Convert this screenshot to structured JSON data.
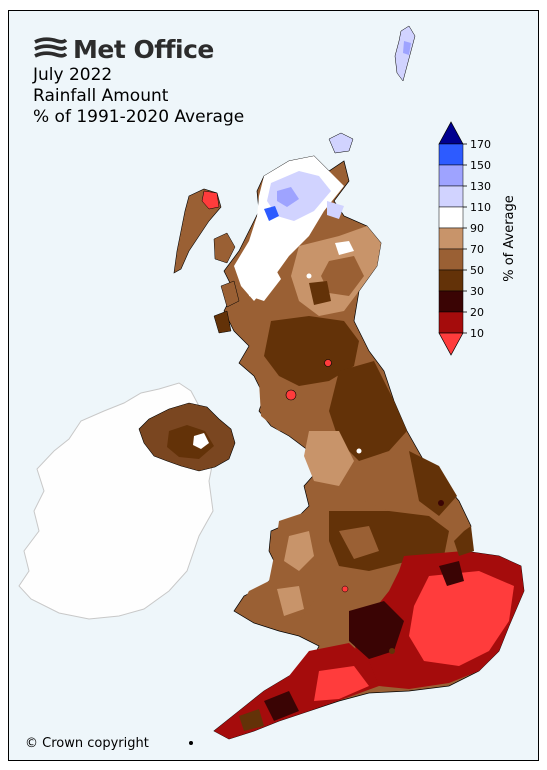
{
  "brand": {
    "name": "Met Office"
  },
  "title": {
    "line1": "July 2022",
    "line2": "Rainfall Amount",
    "line3": "% of 1991-2020 Average"
  },
  "footer": {
    "copyright": "© Crown copyright"
  },
  "legend": {
    "title": "% of Average",
    "tick_labels": [
      "170",
      "150",
      "130",
      "110",
      "90",
      "70",
      "50",
      "30",
      "20",
      "10"
    ],
    "bins": [
      {
        "range": "150-170",
        "color": "#2d5bff"
      },
      {
        "range": "130-150",
        "color": "#9ea3ff"
      },
      {
        "range": "110-130",
        "color": "#d1d3ff"
      },
      {
        "range": "90-110",
        "color": "#ffffff"
      },
      {
        "range": "70-90",
        "color": "#c8946a"
      },
      {
        "range": "50-70",
        "color": "#9a6034"
      },
      {
        "range": "30-50",
        "color": "#633208"
      },
      {
        "range": "20-30",
        "color": "#3a0404"
      },
      {
        "range": "10-20",
        "color": "#a50c0c"
      }
    ],
    "over_color": "#00008f",
    "under_color": "#ff3c3c"
  },
  "map": {
    "region": "United Kingdom",
    "ireland_fill": "#fefefe",
    "sea_fill": "#eef6fa",
    "labels": []
  }
}
